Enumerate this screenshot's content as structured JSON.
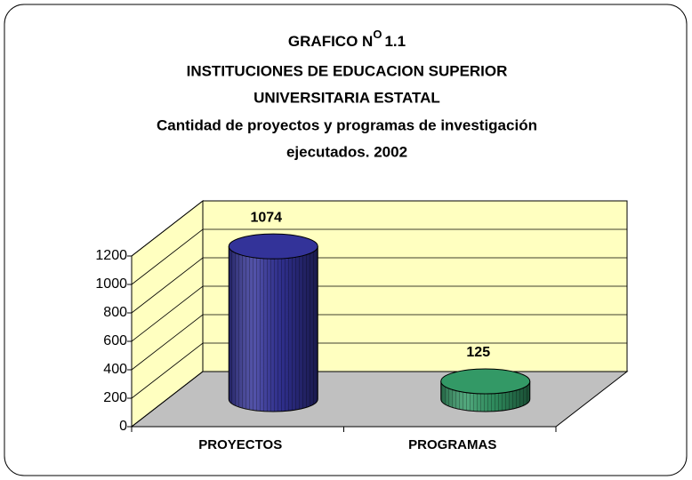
{
  "chart_data": {
    "type": "bar3d",
    "title": "GRAFICO N",
    "title_sup": "O",
    "title_num": "1.1",
    "subtitle": [
      "INSTITUCIONES DE EDUCACION SUPERIOR",
      "UNIVERSITARIA ESTATAL",
      "Cantidad de proyectos y programas de investigación",
      "ejecutados. 2002"
    ],
    "categories": [
      "PROYECTOS",
      "PROGRAMAS"
    ],
    "values": [
      1074,
      125
    ],
    "colors": [
      "#333399",
      "#339966"
    ],
    "ylim": [
      0,
      1200
    ],
    "yticks": [
      0,
      200,
      400,
      600,
      800,
      1000,
      1200
    ],
    "grid": true
  }
}
